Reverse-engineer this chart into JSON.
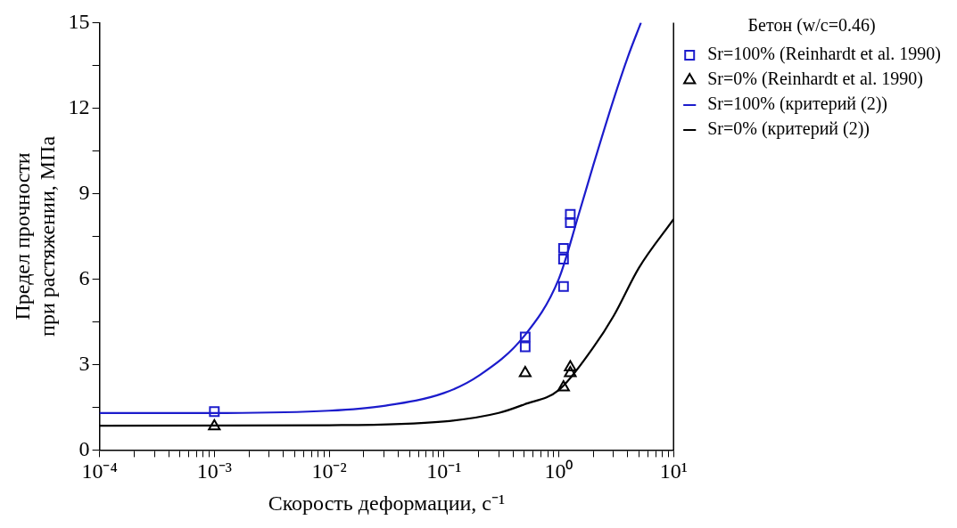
{
  "chart_data": {
    "type": "scatter",
    "xlabel": "Скорость деформации, с⁻¹",
    "ylabel": "Предел прочности\nпри растяжении, МПа",
    "legend_title": "Бетон (w/c=0.46)",
    "legend": "right",
    "log": "x",
    "grid": false,
    "xlim": [
      0.0001,
      10
    ],
    "ylim": [
      0,
      15
    ],
    "xticks": [
      {
        "value": 0.0001,
        "label": "10⁻⁴"
      },
      {
        "value": 0.0002,
        "label": null
      },
      {
        "value": 0.0003,
        "label": null
      },
      {
        "value": 0.0004,
        "label": null
      },
      {
        "value": 0.0005,
        "label": null
      },
      {
        "value": 0.0006,
        "label": null
      },
      {
        "value": 0.0007,
        "label": null
      },
      {
        "value": 0.0008,
        "label": null
      },
      {
        "value": 0.0009,
        "label": null
      },
      {
        "value": 0.001,
        "label": "10⁻³"
      },
      {
        "value": 0.002,
        "label": null
      },
      {
        "value": 0.003,
        "label": null
      },
      {
        "value": 0.004,
        "label": null
      },
      {
        "value": 0.005,
        "label": null
      },
      {
        "value": 0.006,
        "label": null
      },
      {
        "value": 0.007,
        "label": null
      },
      {
        "value": 0.008,
        "label": null
      },
      {
        "value": 0.009,
        "label": null
      },
      {
        "value": 0.01,
        "label": "10⁻²"
      },
      {
        "value": 0.02,
        "label": null
      },
      {
        "value": 0.03,
        "label": null
      },
      {
        "value": 0.04,
        "label": null
      },
      {
        "value": 0.05,
        "label": null
      },
      {
        "value": 0.06,
        "label": null
      },
      {
        "value": 0.07,
        "label": null
      },
      {
        "value": 0.08,
        "label": null
      },
      {
        "value": 0.09,
        "label": null
      },
      {
        "value": 0.1,
        "label": "10⁻¹"
      },
      {
        "value": 0.2,
        "label": null
      },
      {
        "value": 0.3,
        "label": null
      },
      {
        "value": 0.4,
        "label": null
      },
      {
        "value": 0.5,
        "label": null
      },
      {
        "value": 0.6,
        "label": null
      },
      {
        "value": 0.7,
        "label": null
      },
      {
        "value": 0.8,
        "label": null
      },
      {
        "value": 0.9,
        "label": null
      },
      {
        "value": 1,
        "label": "10⁰"
      },
      {
        "value": 2,
        "label": null
      },
      {
        "value": 3,
        "label": null
      },
      {
        "value": 4,
        "label": null
      },
      {
        "value": 5,
        "label": null
      },
      {
        "value": 6,
        "label": null
      },
      {
        "value": 7,
        "label": null
      },
      {
        "value": 8,
        "label": null
      },
      {
        "value": 9,
        "label": null
      },
      {
        "value": 10,
        "label": "10¹"
      }
    ],
    "yticks": [
      0,
      {
        "value": 1.5,
        "label": null
      },
      3,
      {
        "value": 4.5,
        "label": null
      },
      6,
      {
        "value": 7.5,
        "label": null
      },
      9,
      {
        "value": 10.5,
        "label": null
      },
      12,
      {
        "value": 13.5,
        "label": null
      },
      15
    ],
    "series": [
      {
        "name": "Sr=100% (Reinhardt et al. 1990)",
        "marker": "square",
        "color": "#1c1ccc",
        "x": [
          0.001,
          0.51,
          0.51,
          1.1,
          1.1,
          1.1,
          1.26,
          1.26
        ],
        "values": [
          1.35,
          3.62,
          3.97,
          5.74,
          6.7,
          7.08,
          7.98,
          8.27
        ]
      },
      {
        "name": "Sr=0% (Reinhardt et al. 1990)",
        "marker": "triangle",
        "color": "#000000",
        "x": [
          0.001,
          0.51,
          1.1,
          1.26,
          1.26
        ],
        "values": [
          0.83,
          2.7,
          2.2,
          2.7,
          2.9
        ]
      },
      {
        "name": "Sr=100% (критерий (2))",
        "type": "line",
        "marker": "none",
        "line_style": "solid",
        "color": "#1c1ccc",
        "x": [
          0.0001,
          0.001,
          0.01,
          0.03,
          0.1,
          0.2,
          0.5,
          1,
          1.5,
          2,
          3,
          4,
          5.2
        ],
        "values": [
          1.3,
          1.3,
          1.38,
          1.55,
          2.0,
          2.6,
          4.0,
          6.0,
          8.3,
          10,
          12.3,
          13.8,
          15
        ]
      },
      {
        "name": "Sr=0% (критерий (2))",
        "type": "line",
        "marker": "none",
        "line_style": "solid",
        "color": "#000000",
        "x": [
          0.0001,
          0.01,
          0.1,
          0.3,
          0.5,
          1,
          2,
          3,
          5,
          10
        ],
        "values": [
          0.85,
          0.87,
          1.0,
          1.3,
          1.6,
          2.1,
          3.6,
          4.7,
          6.4,
          8.1
        ]
      }
    ]
  }
}
